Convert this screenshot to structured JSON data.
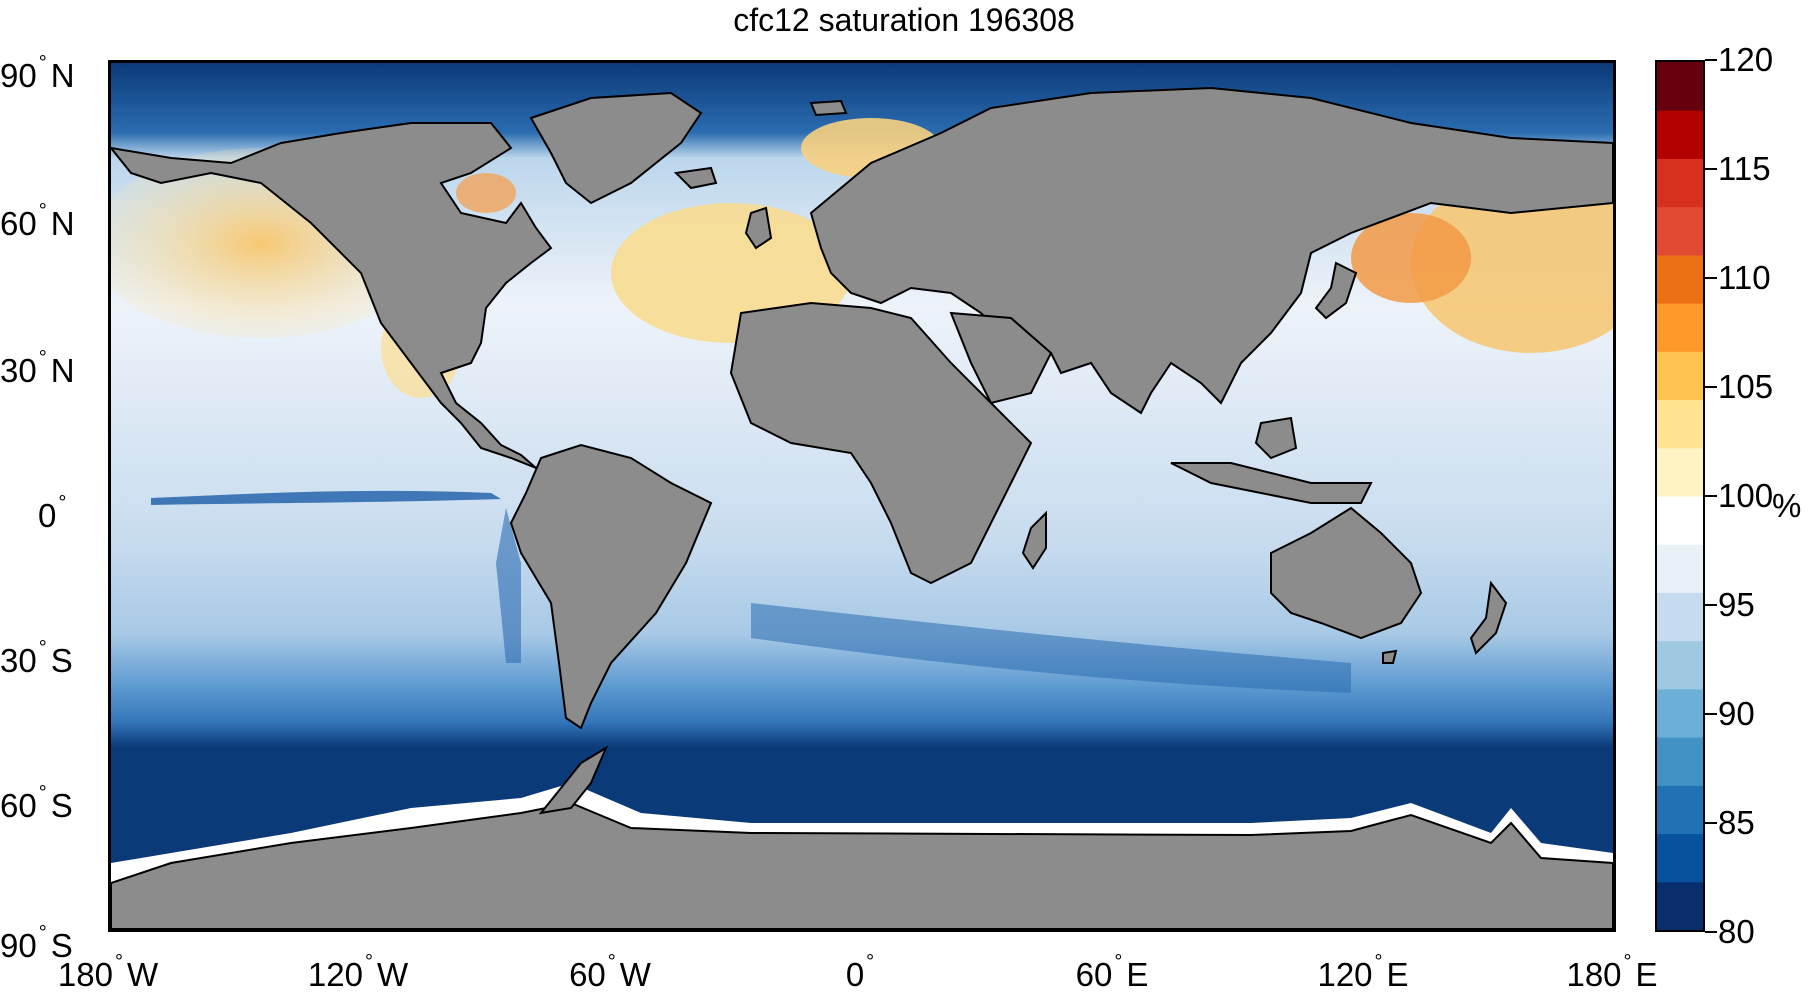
{
  "title": "cfc12 saturation 196308",
  "y_axis": [
    {
      "deg": "90",
      "dir": "N"
    },
    {
      "deg": "60",
      "dir": "N"
    },
    {
      "deg": "30",
      "dir": "N"
    },
    {
      "deg": "0",
      "dir": ""
    },
    {
      "deg": "30",
      "dir": "S"
    },
    {
      "deg": "60",
      "dir": "S"
    },
    {
      "deg": "90",
      "dir": "S"
    }
  ],
  "x_axis": [
    {
      "deg": "180",
      "dir": "W"
    },
    {
      "deg": "120",
      "dir": "W"
    },
    {
      "deg": "60",
      "dir": "W"
    },
    {
      "deg": "0",
      "dir": ""
    },
    {
      "deg": "60",
      "dir": "E"
    },
    {
      "deg": "120",
      "dir": "E"
    },
    {
      "deg": "180",
      "dir": "E"
    }
  ],
  "colorbar": {
    "unit": "%",
    "min": 80,
    "max": 120,
    "ticks": [
      "120",
      "115",
      "110",
      "105",
      "100",
      "95",
      "90",
      "85",
      "80"
    ],
    "colors": [
      "#082f6b",
      "#08519c",
      "#2171b5",
      "#4292c6",
      "#6baed6",
      "#9ecae1",
      "#c6dbef",
      "#e8f0f8",
      "#ffffff",
      "#fff3c4",
      "#fee391",
      "#fec44f",
      "#fe9929",
      "#ec7014",
      "#e34a33",
      "#d7301f",
      "#b30000",
      "#67000d"
    ]
  },
  "colors": {
    "land": "#8c8c8c",
    "ocean_deep_blue": "#0a3a78",
    "ocean_mid_blue": "#4a8cc6",
    "ocean_light": "#cfe0ef",
    "ocean_warm": "#f7d98a"
  }
}
